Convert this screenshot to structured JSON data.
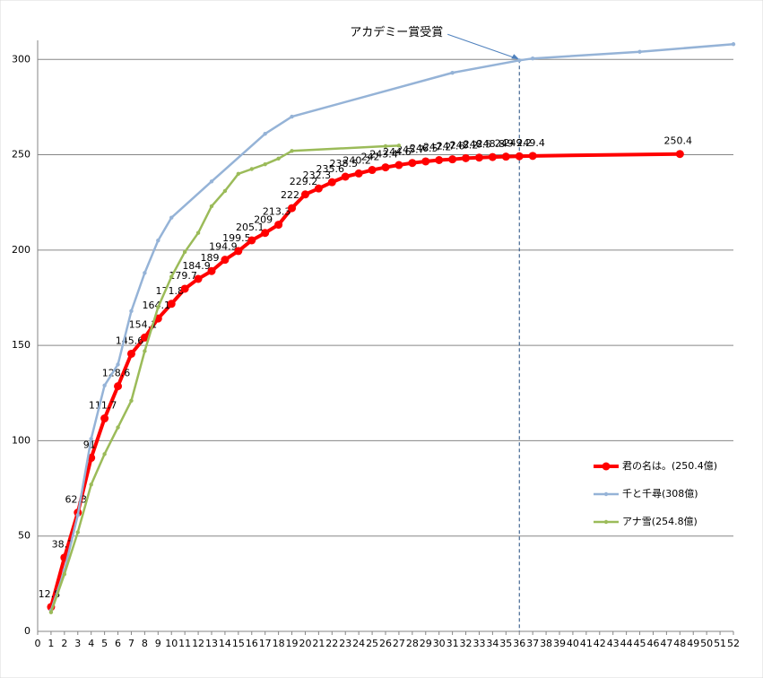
{
  "chart_data": {
    "type": "line",
    "xlim": [
      0,
      52
    ],
    "xticks": [
      0,
      1,
      2,
      3,
      4,
      5,
      6,
      7,
      8,
      9,
      10,
      11,
      12,
      13,
      14,
      15,
      16,
      17,
      18,
      19,
      20,
      21,
      22,
      23,
      24,
      25,
      26,
      27,
      28,
      29,
      30,
      31,
      32,
      33,
      34,
      35,
      36,
      37,
      38,
      39,
      40,
      41,
      42,
      43,
      44,
      45,
      46,
      47,
      48,
      49,
      50,
      51,
      52
    ],
    "ylim": [
      0,
      310
    ],
    "yticks": [
      0,
      50,
      100,
      150,
      200,
      250,
      300
    ],
    "grid": true,
    "legend": "right",
    "annotations": [
      {
        "text": "アカデミー賞受賞",
        "x": 36,
        "y": 300
      }
    ],
    "series": [
      {
        "name": "君の名は。(250.4億)",
        "color": "#ff0000",
        "show_labels": true,
        "x": [
          1,
          2,
          3,
          4,
          5,
          6,
          7,
          8,
          9,
          10,
          11,
          12,
          13,
          14,
          15,
          16,
          17,
          18,
          19,
          20,
          21,
          22,
          23,
          24,
          25,
          26,
          27,
          28,
          29,
          30,
          31,
          32,
          33,
          34,
          35,
          36,
          37,
          48
        ],
        "values": [
          12.8,
          38.7,
          62.3,
          91,
          111.7,
          128.6,
          145.6,
          154.1,
          164.1,
          171.8,
          179.7,
          184.9,
          189,
          194.9,
          199.5,
          205.1,
          209,
          213.3,
          222,
          229.2,
          232.3,
          235.6,
          238.5,
          240.2,
          242,
          243.4,
          244.6,
          245.7,
          246.5,
          247.2,
          247.6,
          248.2,
          248.5,
          248.8,
          249,
          249.2,
          249.4,
          250.4
        ]
      },
      {
        "name": "千と千尋(308億)",
        "color": "#95b3d7",
        "show_labels": false,
        "x": [
          1,
          2,
          3,
          4,
          5,
          6,
          7,
          8,
          9,
          10,
          13,
          17,
          19,
          31,
          36,
          37,
          45,
          52
        ],
        "values": [
          11,
          32,
          61,
          101,
          129,
          140,
          168,
          188,
          205,
          217,
          236,
          261,
          270,
          293,
          299.5,
          300.5,
          304,
          308
        ]
      },
      {
        "name": "アナ雪(254.8億)",
        "color": "#9bbb59",
        "show_labels": false,
        "x": [
          1,
          2,
          3,
          4,
          5,
          6,
          7,
          8,
          9,
          10,
          11,
          12,
          13,
          14,
          15,
          16,
          17,
          18,
          19,
          26,
          27
        ],
        "values": [
          10,
          30,
          52,
          77,
          93,
          107,
          121,
          147,
          170,
          186,
          199,
          209,
          223,
          231,
          240,
          242.5,
          245,
          248,
          252,
          254.5,
          254.8
        ]
      }
    ]
  }
}
